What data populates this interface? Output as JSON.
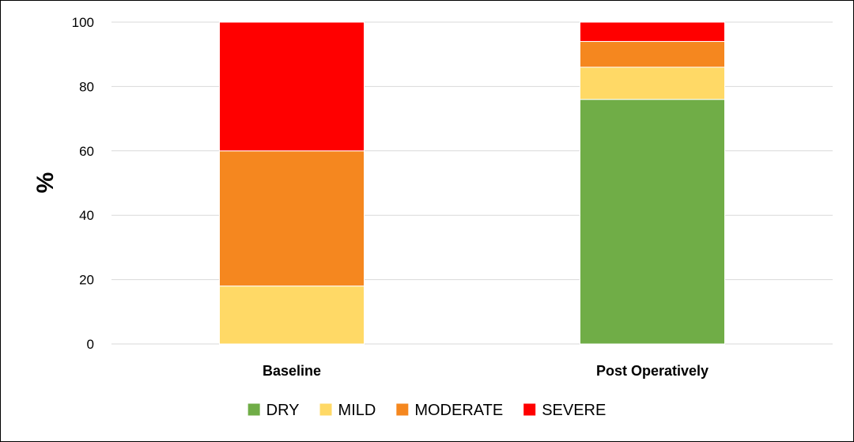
{
  "chart_data": {
    "type": "bar",
    "stacked": true,
    "title": "",
    "xlabel": "",
    "ylabel": "%",
    "ylim": [
      0,
      100
    ],
    "yticks": [
      0,
      20,
      40,
      60,
      80,
      100
    ],
    "categories": [
      "Baseline",
      "Post Operatively"
    ],
    "series": [
      {
        "name": "DRY",
        "color": "#70AD47",
        "values": [
          0,
          76
        ]
      },
      {
        "name": "MILD",
        "color": "#FFD966",
        "values": [
          18,
          10
        ]
      },
      {
        "name": "MODERATE",
        "color": "#F5871F",
        "values": [
          42,
          8
        ]
      },
      {
        "name": "SEVERE",
        "color": "#FF0000",
        "values": [
          40,
          6
        ]
      }
    ],
    "grid": true,
    "legend_position": "bottom"
  }
}
